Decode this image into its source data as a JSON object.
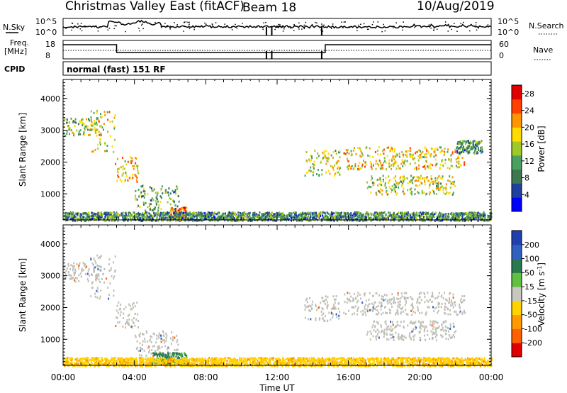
{
  "header": {
    "title": "Christmas Valley East (fitACF)",
    "beam": "Beam 18",
    "date": "10/Aug/2019"
  },
  "strips": {
    "nsky_label": "N.Sky",
    "nsearch_label": "N.Search",
    "noise_ticks": [
      "10^5",
      "10^0"
    ],
    "freq_label": "Freq.",
    "freq_unit": "[MHz]",
    "freq_ticks": [
      "18",
      "8"
    ],
    "nave_label": "Nave",
    "nave_ticks": [
      "60",
      "0"
    ],
    "cpid_label": "CPID",
    "cpid_value": "normal (fast) 151 RF"
  },
  "colors": {
    "power_scale": [
      "#0000ff",
      "#2040a0",
      "#3c7850",
      "#4aa060",
      "#a0c828",
      "#ffdc00",
      "#ff9600",
      "#ff4000",
      "#e00000"
    ],
    "velocity_scale": [
      "#2040b0",
      "#3060c0",
      "#2a7a50",
      "#60c040",
      "#c8c8c0",
      "#ffd200",
      "#ff9a00",
      "#ff6000",
      "#e00000"
    ],
    "ground_scatter": "#c0c0b8"
  },
  "chart_data": [
    {
      "type": "heatmap",
      "title": "",
      "xlabel": "Time UT",
      "ylabel": "Slant Range [km]",
      "x_ticks": [
        "00:00",
        "04:00",
        "08:00",
        "12:00",
        "16:00",
        "20:00",
        "00:00"
      ],
      "y_ticks": [
        "1000",
        "2000",
        "3000",
        "4000"
      ],
      "xlim": [
        0,
        24
      ],
      "ylim": [
        180,
        4600
      ],
      "colorbar": {
        "label": "Power [dB]",
        "ticks": [
          "4",
          "8",
          "12",
          "16",
          "20",
          "24",
          "28"
        ],
        "range": [
          0,
          30
        ]
      },
      "echo_regions": [
        {
          "t0": 0.0,
          "t1": 2.0,
          "r0": 2850,
          "r1": 3450,
          "value": 14
        },
        {
          "t0": 1.5,
          "t1": 2.9,
          "r0": 2300,
          "r1": 3700,
          "value": 18
        },
        {
          "t0": 2.9,
          "t1": 4.2,
          "r0": 1400,
          "r1": 2200,
          "value": 20
        },
        {
          "t0": 4.0,
          "t1": 6.5,
          "r0": 500,
          "r1": 1300,
          "value": 12
        },
        {
          "t0": 6.0,
          "t1": 6.9,
          "r0": 250,
          "r1": 600,
          "value": 22
        },
        {
          "t0": 0.0,
          "t1": 24.0,
          "r0": 180,
          "r1": 450,
          "value": 10
        },
        {
          "t0": 13.5,
          "t1": 15.5,
          "r0": 1600,
          "r1": 2400,
          "value": 16
        },
        {
          "t0": 15.7,
          "t1": 22.5,
          "r0": 1800,
          "r1": 2500,
          "value": 18
        },
        {
          "t0": 17.0,
          "t1": 22.0,
          "r0": 1000,
          "r1": 1600,
          "value": 16
        },
        {
          "t0": 22.0,
          "t1": 23.5,
          "r0": 2300,
          "r1": 2700,
          "value": 10
        }
      ]
    },
    {
      "type": "heatmap",
      "title": "",
      "xlabel": "Time UT",
      "ylabel": "Slant Range [km]",
      "x_ticks": [
        "00:00",
        "04:00",
        "08:00",
        "12:00",
        "16:00",
        "20:00",
        "00:00"
      ],
      "y_ticks": [
        "1000",
        "2000",
        "3000",
        "4000"
      ],
      "xlim": [
        0,
        24
      ],
      "ylim": [
        180,
        4600
      ],
      "colorbar": {
        "label": "Velocity [m s^-1]",
        "ticks": [
          "200",
          "100",
          "50",
          "15",
          "-15",
          "-50",
          "-100",
          "-200"
        ],
        "range": [
          -250,
          250
        ]
      },
      "echo_regions": [
        {
          "t0": 0.0,
          "t1": 2.0,
          "r0": 2850,
          "r1": 3450,
          "value": 0
        },
        {
          "t0": 1.5,
          "t1": 2.9,
          "r0": 2300,
          "r1": 3700,
          "value": 0
        },
        {
          "t0": 2.9,
          "t1": 4.2,
          "r0": 1400,
          "r1": 2200,
          "value": 0
        },
        {
          "t0": 4.0,
          "t1": 6.5,
          "r0": 500,
          "r1": 1300,
          "value": 0
        },
        {
          "t0": 5.0,
          "t1": 6.9,
          "r0": 250,
          "r1": 600,
          "value": 60
        },
        {
          "t0": 0.0,
          "t1": 24.0,
          "r0": 180,
          "r1": 450,
          "value": -40
        },
        {
          "t0": 13.5,
          "t1": 15.5,
          "r0": 1600,
          "r1": 2400,
          "value": 0
        },
        {
          "t0": 15.7,
          "t1": 22.5,
          "r0": 1800,
          "r1": 2500,
          "value": 0
        },
        {
          "t0": 17.0,
          "t1": 22.0,
          "r0": 1000,
          "r1": 1600,
          "value": 0
        }
      ]
    }
  ]
}
